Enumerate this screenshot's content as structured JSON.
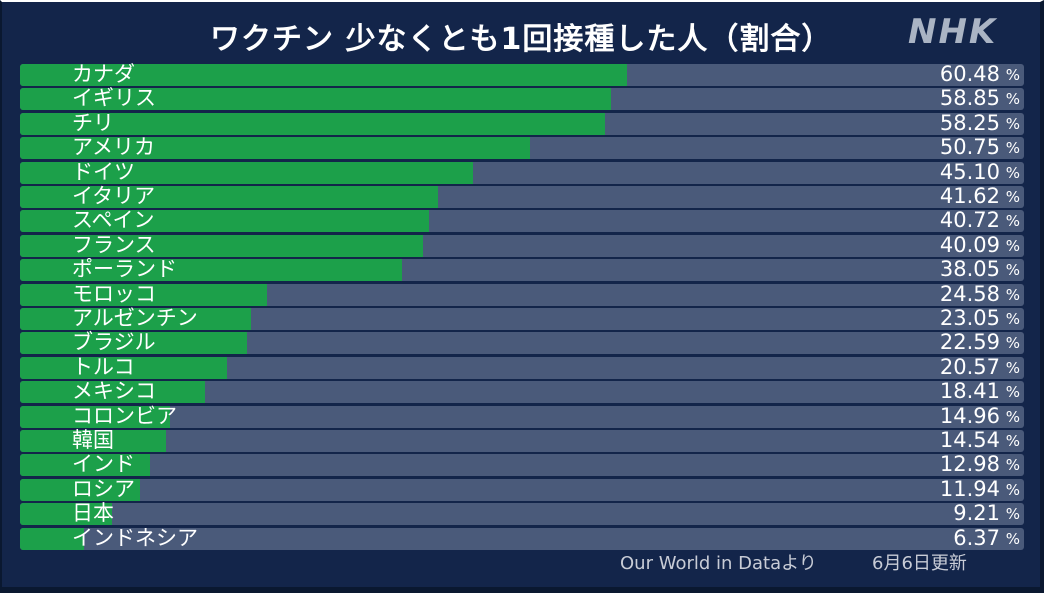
{
  "header": {
    "title": "ワクチン 少なくとも1回接種した人（割合）",
    "logo": "NHK"
  },
  "footer": {
    "source": "Our World in Dataより",
    "updated": "6月6日更新"
  },
  "colors": {
    "background": "#13254a",
    "track": "#4a5a7a",
    "bar": "#1ca04a",
    "text": "#ffffff"
  },
  "chart_data": {
    "type": "bar",
    "orientation": "horizontal",
    "title": "ワクチン 少なくとも1回接種した人（割合）",
    "unit": "%",
    "xlim": [
      0,
      100
    ],
    "categories": [
      "カナダ",
      "イギリス",
      "チリ",
      "アメリカ",
      "ドイツ",
      "イタリア",
      "スペイン",
      "フランス",
      "ポーランド",
      "モロッコ",
      "アルゼンチン",
      "ブラジル",
      "トルコ",
      "メキシコ",
      "コロンビア",
      "韓国",
      "インド",
      "ロシア",
      "日本",
      "インドネシア"
    ],
    "values": [
      60.48,
      58.85,
      58.25,
      50.75,
      45.1,
      41.62,
      40.72,
      40.09,
      38.05,
      24.58,
      23.05,
      22.59,
      20.57,
      18.41,
      14.96,
      14.54,
      12.98,
      11.94,
      9.21,
      6.37
    ],
    "value_labels": [
      "60.48",
      "58.85",
      "58.25",
      "50.75",
      "45.10",
      "41.62",
      "40.72",
      "40.09",
      "38.05",
      "24.58",
      "23.05",
      "22.59",
      "20.57",
      "18.41",
      "14.96",
      "14.54",
      "12.98",
      "11.94",
      "9.21",
      "6.37"
    ]
  }
}
